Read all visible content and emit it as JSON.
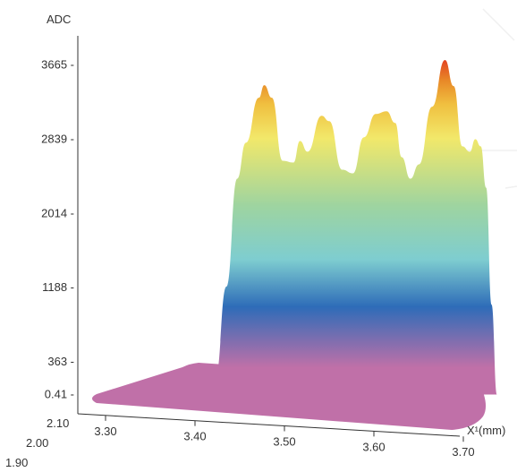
{
  "chart_data": {
    "type": "area",
    "ylabel": "ADC",
    "xlabel": "X¹(mm)",
    "y_ticks": [
      {
        "value": 3665,
        "label": "3665 -"
      },
      {
        "value": 2839,
        "label": "2839 -"
      },
      {
        "value": 2014,
        "label": "2014 -"
      },
      {
        "value": 1188,
        "label": "1188 -"
      },
      {
        "value": 363,
        "label": "363 -"
      },
      {
        "value": 0.41,
        "label": "0.41 -"
      }
    ],
    "x_ticks": [
      {
        "value": 3.3,
        "label": "3.30"
      },
      {
        "value": 3.4,
        "label": "3.40"
      },
      {
        "value": 3.5,
        "label": "3.50"
      },
      {
        "value": 3.6,
        "label": "3.60"
      },
      {
        "value": 3.7,
        "label": "3.70"
      }
    ],
    "depth_ticks": [
      {
        "value": 2.1,
        "label": "2.10"
      },
      {
        "value": 2.0,
        "label": "2.00"
      },
      {
        "value": 1.9,
        "label": "1.90"
      }
    ],
    "ylim": [
      0,
      3900
    ],
    "xlim": [
      3.26,
      3.8
    ],
    "grid": false,
    "profile": [
      {
        "x": 3.395,
        "y": 0
      },
      {
        "x": 3.4,
        "y": 200
      },
      {
        "x": 3.41,
        "y": 1200
      },
      {
        "x": 3.42,
        "y": 2400
      },
      {
        "x": 3.428,
        "y": 2800
      },
      {
        "x": 3.44,
        "y": 3300
      },
      {
        "x": 3.445,
        "y": 3440
      },
      {
        "x": 3.452,
        "y": 3300
      },
      {
        "x": 3.462,
        "y": 2600
      },
      {
        "x": 3.472,
        "y": 2580
      },
      {
        "x": 3.478,
        "y": 2820
      },
      {
        "x": 3.485,
        "y": 2700
      },
      {
        "x": 3.498,
        "y": 3100
      },
      {
        "x": 3.505,
        "y": 3040
      },
      {
        "x": 3.517,
        "y": 2500
      },
      {
        "x": 3.527,
        "y": 2460
      },
      {
        "x": 3.537,
        "y": 2860
      },
      {
        "x": 3.548,
        "y": 3120
      },
      {
        "x": 3.558,
        "y": 3150
      },
      {
        "x": 3.566,
        "y": 3020
      },
      {
        "x": 3.572,
        "y": 2640
      },
      {
        "x": 3.58,
        "y": 2400
      },
      {
        "x": 3.588,
        "y": 2560
      },
      {
        "x": 3.6,
        "y": 3200
      },
      {
        "x": 3.612,
        "y": 3720
      },
      {
        "x": 3.62,
        "y": 3430
      },
      {
        "x": 3.628,
        "y": 2760
      },
      {
        "x": 3.635,
        "y": 2700
      },
      {
        "x": 3.64,
        "y": 2840
      },
      {
        "x": 3.645,
        "y": 2760
      },
      {
        "x": 3.65,
        "y": 2300
      },
      {
        "x": 3.655,
        "y": 1000
      },
      {
        "x": 3.66,
        "y": 0
      }
    ],
    "colors": {
      "colormap": [
        "#c070a8",
        "#c070a8",
        "#2e6cb8",
        "#7ecdd0",
        "#9ed4a0",
        "#f2e86a",
        "#f0c040",
        "#e88a28",
        "#e23a20"
      ],
      "base": "#c070a8",
      "axis": "#333333",
      "text": "#333333"
    }
  }
}
